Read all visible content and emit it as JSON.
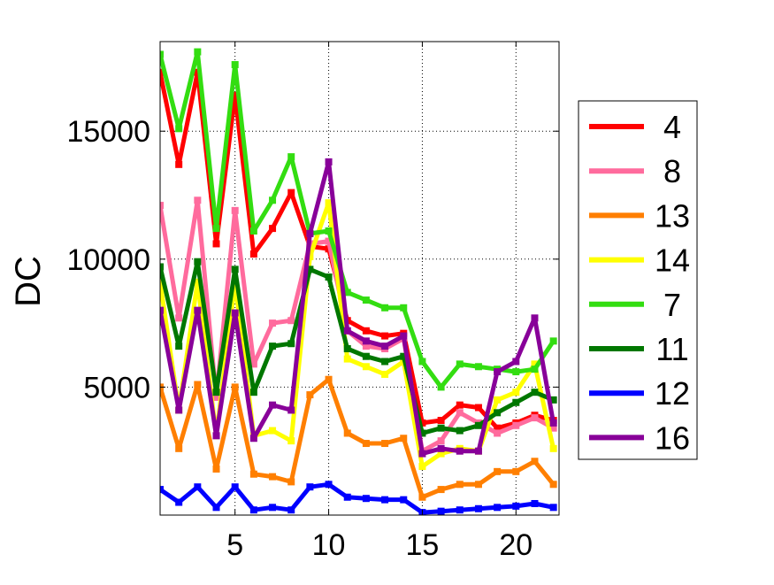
{
  "chart_data": {
    "type": "line",
    "title": "",
    "xlabel": "",
    "ylabel": "DC",
    "xlim": [
      1,
      22.3
    ],
    "ylim": [
      0,
      18500
    ],
    "x_ticks": [
      5,
      10,
      15,
      20
    ],
    "y_ticks": [
      5000,
      10000,
      15000
    ],
    "grid": true,
    "legend_position": "right",
    "x": [
      1,
      2,
      3,
      4,
      5,
      6,
      7,
      8,
      9,
      10,
      11,
      12,
      13,
      14,
      15,
      16,
      17,
      18,
      19,
      20,
      21,
      22
    ],
    "series": [
      {
        "name": "4",
        "color": "#ff0000",
        "values": [
          17300,
          13700,
          17300,
          10600,
          16400,
          10200,
          11200,
          12600,
          10500,
          10400,
          7600,
          7200,
          7000,
          7100,
          3600,
          3700,
          4300,
          4200,
          3400,
          3600,
          3900,
          3700
        ]
      },
      {
        "name": "8",
        "color": "#ff6b9d",
        "values": [
          12100,
          7700,
          12300,
          4600,
          11900,
          5900,
          7500,
          7600,
          10600,
          10700,
          7200,
          6600,
          6500,
          6900,
          2500,
          2900,
          4000,
          3600,
          3200,
          3500,
          3800,
          3400
        ]
      },
      {
        "name": "13",
        "color": "#ff7f00",
        "values": [
          5000,
          2600,
          5100,
          1800,
          5000,
          1600,
          1500,
          1300,
          4700,
          5300,
          3200,
          2800,
          2800,
          3000,
          700,
          1000,
          1200,
          1200,
          1700,
          1700,
          2100,
          1200
        ]
      },
      {
        "name": "14",
        "color": "#ffff00",
        "values": [
          9100,
          4100,
          9100,
          3100,
          9100,
          3100,
          3300,
          2900,
          10100,
          12200,
          6100,
          5800,
          5500,
          6000,
          1900,
          2400,
          2600,
          2500,
          4500,
          4800,
          5900,
          2600
        ]
      },
      {
        "name": "7",
        "color": "#33dd11",
        "values": [
          18000,
          15100,
          18100,
          11200,
          17600,
          11100,
          12300,
          14000,
          11000,
          11100,
          8700,
          8400,
          8100,
          8100,
          6000,
          5000,
          5900,
          5800,
          5700,
          5600,
          5700,
          6800
        ]
      },
      {
        "name": "11",
        "color": "#007700",
        "values": [
          9700,
          6600,
          9900,
          4800,
          9600,
          4800,
          6600,
          6700,
          9600,
          9300,
          6500,
          6200,
          6000,
          6200,
          3200,
          3400,
          3300,
          3500,
          4000,
          4400,
          4800,
          4500
        ]
      },
      {
        "name": "12",
        "color": "#0000ff",
        "values": [
          1000,
          500,
          1100,
          300,
          1100,
          200,
          300,
          200,
          1100,
          1200,
          700,
          650,
          600,
          600,
          100,
          150,
          200,
          250,
          300,
          350,
          450,
          300
        ]
      },
      {
        "name": "16",
        "color": "#880099",
        "values": [
          8000,
          4100,
          8000,
          3100,
          7900,
          3000,
          4300,
          4100,
          11000,
          13800,
          7200,
          6800,
          6600,
          7000,
          2400,
          2600,
          2500,
          2500,
          5600,
          6000,
          7700,
          3600
        ]
      }
    ]
  }
}
